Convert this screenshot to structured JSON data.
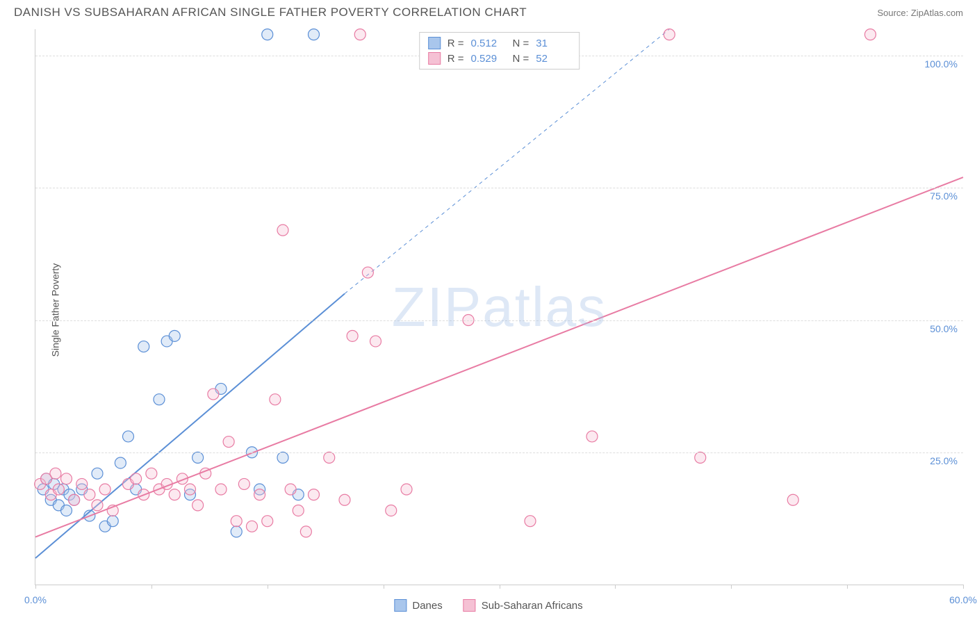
{
  "header": {
    "title": "DANISH VS SUBSAHARAN AFRICAN SINGLE FATHER POVERTY CORRELATION CHART",
    "source": "Source: ZipAtlas.com"
  },
  "chart": {
    "type": "scatter",
    "y_label": "Single Father Poverty",
    "watermark": "ZIPatlas",
    "xlim": [
      0,
      60
    ],
    "ylim": [
      0,
      105
    ],
    "x_ticks": [
      0,
      7.5,
      15,
      22.5,
      30,
      37.5,
      45,
      52.5,
      60
    ],
    "x_tick_labels": {
      "0": "0.0%",
      "60": "60.0%"
    },
    "y_gridlines": [
      25,
      50,
      75,
      100
    ],
    "y_tick_labels": {
      "25": "25.0%",
      "50": "50.0%",
      "75": "75.0%",
      "100": "100.0%"
    },
    "grid_color": "#dddddd",
    "axis_color": "#cccccc",
    "background_color": "#ffffff",
    "tick_label_color": "#5b8fd6",
    "marker_radius": 8,
    "marker_fill_opacity": 0.35,
    "marker_stroke_width": 1.2,
    "series": [
      {
        "name": "Danes",
        "color": "#5b8fd6",
        "fill": "#a9c6ec",
        "r_label": "R =",
        "r_value": "0.512",
        "n_label": "N =",
        "n_value": "31",
        "trend": {
          "x1": 0,
          "y1": 5,
          "x2": 20,
          "y2": 55,
          "dash_x1": 20,
          "dash_y1": 55,
          "dash_x2": 41,
          "dash_y2": 105,
          "stroke_width": 2
        },
        "points": [
          [
            0.5,
            18
          ],
          [
            0.7,
            20
          ],
          [
            1.0,
            16
          ],
          [
            1.2,
            19
          ],
          [
            1.5,
            15
          ],
          [
            1.8,
            18
          ],
          [
            2.0,
            14
          ],
          [
            2.2,
            17
          ],
          [
            2.5,
            16
          ],
          [
            3.0,
            18
          ],
          [
            3.5,
            13
          ],
          [
            4.0,
            21
          ],
          [
            4.5,
            11
          ],
          [
            5.0,
            12
          ],
          [
            5.5,
            23
          ],
          [
            6.0,
            28
          ],
          [
            6.5,
            18
          ],
          [
            7.0,
            45
          ],
          [
            8.0,
            35
          ],
          [
            8.5,
            46
          ],
          [
            9.0,
            47
          ],
          [
            10.0,
            17
          ],
          [
            10.5,
            24
          ],
          [
            12.0,
            37
          ],
          [
            13.0,
            10
          ],
          [
            14.0,
            25
          ],
          [
            14.5,
            18
          ],
          [
            15.0,
            104
          ],
          [
            16.0,
            24
          ],
          [
            17.0,
            17
          ],
          [
            18.0,
            104
          ]
        ]
      },
      {
        "name": "Sub-Saharan Africans",
        "color": "#e87ba3",
        "fill": "#f5c1d4",
        "r_label": "R =",
        "r_value": "0.529",
        "n_label": "N =",
        "n_value": "52",
        "trend": {
          "x1": 0,
          "y1": 9,
          "x2": 60,
          "y2": 77,
          "stroke_width": 2
        },
        "points": [
          [
            0.3,
            19
          ],
          [
            0.7,
            20
          ],
          [
            1.0,
            17
          ],
          [
            1.3,
            21
          ],
          [
            1.5,
            18
          ],
          [
            2.0,
            20
          ],
          [
            2.5,
            16
          ],
          [
            3.0,
            19
          ],
          [
            3.5,
            17
          ],
          [
            4.0,
            15
          ],
          [
            4.5,
            18
          ],
          [
            5.0,
            14
          ],
          [
            6.0,
            19
          ],
          [
            6.5,
            20
          ],
          [
            7.0,
            17
          ],
          [
            7.5,
            21
          ],
          [
            8.0,
            18
          ],
          [
            8.5,
            19
          ],
          [
            9.0,
            17
          ],
          [
            9.5,
            20
          ],
          [
            10.0,
            18
          ],
          [
            10.5,
            15
          ],
          [
            11.0,
            21
          ],
          [
            11.5,
            36
          ],
          [
            12.0,
            18
          ],
          [
            12.5,
            27
          ],
          [
            13.0,
            12
          ],
          [
            13.5,
            19
          ],
          [
            14.0,
            11
          ],
          [
            14.5,
            17
          ],
          [
            15.0,
            12
          ],
          [
            15.5,
            35
          ],
          [
            16.0,
            67
          ],
          [
            16.5,
            18
          ],
          [
            17.0,
            14
          ],
          [
            17.5,
            10
          ],
          [
            18.0,
            17
          ],
          [
            19.0,
            24
          ],
          [
            20.0,
            16
          ],
          [
            20.5,
            47
          ],
          [
            21.0,
            104
          ],
          [
            21.5,
            59
          ],
          [
            22.0,
            46
          ],
          [
            23.0,
            14
          ],
          [
            24.0,
            18
          ],
          [
            28.0,
            50
          ],
          [
            32.0,
            12
          ],
          [
            36.0,
            28
          ],
          [
            41.0,
            104
          ],
          [
            43.0,
            24
          ],
          [
            49.0,
            16
          ],
          [
            54.0,
            104
          ]
        ]
      }
    ]
  },
  "bottom_legend": [
    {
      "swatch_fill": "#a9c6ec",
      "swatch_border": "#5b8fd6",
      "label": "Danes"
    },
    {
      "swatch_fill": "#f5c1d4",
      "swatch_border": "#e87ba3",
      "label": "Sub-Saharan Africans"
    }
  ]
}
